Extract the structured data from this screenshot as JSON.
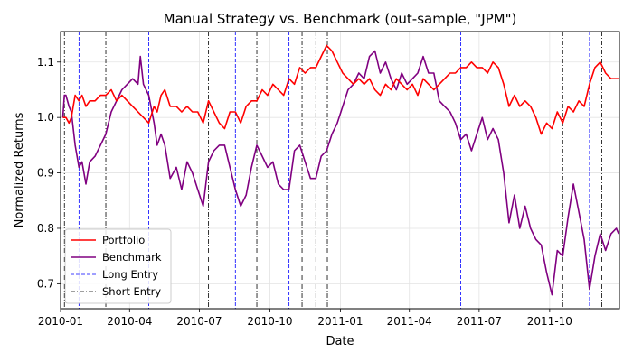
{
  "chart_data": {
    "type": "line",
    "title": "Manual Strategy vs. Benchmark (out-sample, \"JPM\")",
    "xlabel": "Date",
    "ylabel": "Normalized Returns",
    "xlim": [
      "2010-01-01",
      "2011-12-31"
    ],
    "ylim": [
      0.655,
      1.155
    ],
    "grid": true,
    "legend_position": "lower-left",
    "x_ticks": [
      {
        "date": "2010-01-01",
        "label": "2010-01"
      },
      {
        "date": "2010-04-01",
        "label": "2010-04"
      },
      {
        "date": "2010-07-01",
        "label": "2010-07"
      },
      {
        "date": "2010-10-01",
        "label": "2010-10"
      },
      {
        "date": "2011-01-01",
        "label": "2011-01"
      },
      {
        "date": "2011-04-01",
        "label": "2011-04"
      },
      {
        "date": "2011-07-01",
        "label": "2011-07"
      },
      {
        "date": "2011-10-01",
        "label": "2011-10"
      }
    ],
    "y_ticks": [
      {
        "value": 0.7,
        "label": "0.7"
      },
      {
        "value": 0.8,
        "label": "0.8"
      },
      {
        "value": 0.9,
        "label": "0.9"
      },
      {
        "value": 1.0,
        "label": "1.0"
      },
      {
        "value": 1.1,
        "label": "1.1"
      }
    ],
    "series": [
      {
        "name": "Portfolio",
        "color": "#ff0000",
        "points": [
          [
            "2010-01-04",
            1.0
          ],
          [
            "2010-01-08",
            1.0
          ],
          [
            "2010-01-12",
            0.99
          ],
          [
            "2010-01-15",
            1.0
          ],
          [
            "2010-01-20",
            1.04
          ],
          [
            "2010-01-25",
            1.03
          ],
          [
            "2010-01-29",
            1.04
          ],
          [
            "2010-02-03",
            1.02
          ],
          [
            "2010-02-08",
            1.03
          ],
          [
            "2010-02-15",
            1.03
          ],
          [
            "2010-02-22",
            1.04
          ],
          [
            "2010-03-01",
            1.04
          ],
          [
            "2010-03-08",
            1.05
          ],
          [
            "2010-03-15",
            1.03
          ],
          [
            "2010-03-22",
            1.04
          ],
          [
            "2010-03-29",
            1.03
          ],
          [
            "2010-04-05",
            1.02
          ],
          [
            "2010-04-12",
            1.01
          ],
          [
            "2010-04-19",
            1.0
          ],
          [
            "2010-04-26",
            0.99
          ],
          [
            "2010-05-03",
            1.02
          ],
          [
            "2010-05-07",
            1.01
          ],
          [
            "2010-05-12",
            1.04
          ],
          [
            "2010-05-17",
            1.05
          ],
          [
            "2010-05-24",
            1.02
          ],
          [
            "2010-06-01",
            1.02
          ],
          [
            "2010-06-08",
            1.01
          ],
          [
            "2010-06-15",
            1.02
          ],
          [
            "2010-06-22",
            1.01
          ],
          [
            "2010-06-29",
            1.01
          ],
          [
            "2010-07-06",
            0.99
          ],
          [
            "2010-07-13",
            1.03
          ],
          [
            "2010-07-20",
            1.01
          ],
          [
            "2010-07-27",
            0.99
          ],
          [
            "2010-08-03",
            0.98
          ],
          [
            "2010-08-10",
            1.01
          ],
          [
            "2010-08-17",
            1.01
          ],
          [
            "2010-08-24",
            0.99
          ],
          [
            "2010-08-31",
            1.02
          ],
          [
            "2010-09-07",
            1.03
          ],
          [
            "2010-09-14",
            1.03
          ],
          [
            "2010-09-21",
            1.05
          ],
          [
            "2010-09-28",
            1.04
          ],
          [
            "2010-10-05",
            1.06
          ],
          [
            "2010-10-12",
            1.05
          ],
          [
            "2010-10-19",
            1.04
          ],
          [
            "2010-10-26",
            1.07
          ],
          [
            "2010-11-02",
            1.06
          ],
          [
            "2010-11-09",
            1.09
          ],
          [
            "2010-11-16",
            1.08
          ],
          [
            "2010-11-23",
            1.09
          ],
          [
            "2010-11-30",
            1.09
          ],
          [
            "2010-12-07",
            1.11
          ],
          [
            "2010-12-14",
            1.13
          ],
          [
            "2010-12-21",
            1.12
          ],
          [
            "2010-12-28",
            1.1
          ],
          [
            "2011-01-04",
            1.08
          ],
          [
            "2011-01-11",
            1.07
          ],
          [
            "2011-01-18",
            1.06
          ],
          [
            "2011-01-25",
            1.07
          ],
          [
            "2011-02-01",
            1.06
          ],
          [
            "2011-02-08",
            1.07
          ],
          [
            "2011-02-15",
            1.05
          ],
          [
            "2011-02-22",
            1.04
          ],
          [
            "2011-03-01",
            1.06
          ],
          [
            "2011-03-08",
            1.05
          ],
          [
            "2011-03-15",
            1.07
          ],
          [
            "2011-03-22",
            1.06
          ],
          [
            "2011-03-29",
            1.05
          ],
          [
            "2011-04-05",
            1.06
          ],
          [
            "2011-04-12",
            1.04
          ],
          [
            "2011-04-19",
            1.07
          ],
          [
            "2011-04-26",
            1.06
          ],
          [
            "2011-05-03",
            1.05
          ],
          [
            "2011-05-10",
            1.06
          ],
          [
            "2011-05-17",
            1.07
          ],
          [
            "2011-05-24",
            1.08
          ],
          [
            "2011-05-31",
            1.08
          ],
          [
            "2011-06-07",
            1.09
          ],
          [
            "2011-06-14",
            1.09
          ],
          [
            "2011-06-21",
            1.1
          ],
          [
            "2011-06-28",
            1.09
          ],
          [
            "2011-07-05",
            1.09
          ],
          [
            "2011-07-12",
            1.08
          ],
          [
            "2011-07-19",
            1.1
          ],
          [
            "2011-07-26",
            1.09
          ],
          [
            "2011-08-02",
            1.06
          ],
          [
            "2011-08-09",
            1.02
          ],
          [
            "2011-08-16",
            1.04
          ],
          [
            "2011-08-23",
            1.02
          ],
          [
            "2011-08-30",
            1.03
          ],
          [
            "2011-09-06",
            1.02
          ],
          [
            "2011-09-13",
            1.0
          ],
          [
            "2011-09-20",
            0.97
          ],
          [
            "2011-09-27",
            0.99
          ],
          [
            "2011-10-04",
            0.98
          ],
          [
            "2011-10-11",
            1.01
          ],
          [
            "2011-10-18",
            0.99
          ],
          [
            "2011-10-25",
            1.02
          ],
          [
            "2011-11-01",
            1.01
          ],
          [
            "2011-11-08",
            1.03
          ],
          [
            "2011-11-15",
            1.02
          ],
          [
            "2011-11-22",
            1.06
          ],
          [
            "2011-11-29",
            1.09
          ],
          [
            "2011-12-06",
            1.1
          ],
          [
            "2011-12-13",
            1.08
          ],
          [
            "2011-12-20",
            1.07
          ],
          [
            "2011-12-27",
            1.07
          ],
          [
            "2011-12-30",
            1.07
          ]
        ]
      },
      {
        "name": "Benchmark",
        "color": "#800080",
        "points": [
          [
            "2010-01-04",
            1.0
          ],
          [
            "2010-01-06",
            1.04
          ],
          [
            "2010-01-08",
            1.04
          ],
          [
            "2010-01-12",
            1.02
          ],
          [
            "2010-01-15",
            1.01
          ],
          [
            "2010-01-20",
            0.95
          ],
          [
            "2010-01-25",
            0.91
          ],
          [
            "2010-01-29",
            0.92
          ],
          [
            "2010-02-03",
            0.88
          ],
          [
            "2010-02-08",
            0.92
          ],
          [
            "2010-02-15",
            0.93
          ],
          [
            "2010-02-22",
            0.95
          ],
          [
            "2010-03-01",
            0.97
          ],
          [
            "2010-03-08",
            1.01
          ],
          [
            "2010-03-15",
            1.03
          ],
          [
            "2010-03-22",
            1.05
          ],
          [
            "2010-03-29",
            1.06
          ],
          [
            "2010-04-05",
            1.07
          ],
          [
            "2010-04-12",
            1.06
          ],
          [
            "2010-04-15",
            1.11
          ],
          [
            "2010-04-19",
            1.06
          ],
          [
            "2010-04-26",
            1.04
          ],
          [
            "2010-05-03",
            0.99
          ],
          [
            "2010-05-07",
            0.95
          ],
          [
            "2010-05-12",
            0.97
          ],
          [
            "2010-05-17",
            0.95
          ],
          [
            "2010-05-24",
            0.89
          ],
          [
            "2010-06-01",
            0.91
          ],
          [
            "2010-06-08",
            0.87
          ],
          [
            "2010-06-15",
            0.92
          ],
          [
            "2010-06-22",
            0.9
          ],
          [
            "2010-06-29",
            0.87
          ],
          [
            "2010-07-06",
            0.84
          ],
          [
            "2010-07-13",
            0.92
          ],
          [
            "2010-07-20",
            0.94
          ],
          [
            "2010-07-27",
            0.95
          ],
          [
            "2010-08-03",
            0.95
          ],
          [
            "2010-08-10",
            0.91
          ],
          [
            "2010-08-17",
            0.87
          ],
          [
            "2010-08-24",
            0.84
          ],
          [
            "2010-08-31",
            0.86
          ],
          [
            "2010-09-07",
            0.91
          ],
          [
            "2010-09-14",
            0.95
          ],
          [
            "2010-09-21",
            0.93
          ],
          [
            "2010-09-28",
            0.91
          ],
          [
            "2010-10-05",
            0.92
          ],
          [
            "2010-10-12",
            0.88
          ],
          [
            "2010-10-19",
            0.87
          ],
          [
            "2010-10-26",
            0.87
          ],
          [
            "2010-11-02",
            0.94
          ],
          [
            "2010-11-09",
            0.95
          ],
          [
            "2010-11-16",
            0.92
          ],
          [
            "2010-11-23",
            0.89
          ],
          [
            "2010-11-30",
            0.89
          ],
          [
            "2010-12-07",
            0.93
          ],
          [
            "2010-12-14",
            0.94
          ],
          [
            "2010-12-21",
            0.97
          ],
          [
            "2010-12-28",
            0.99
          ],
          [
            "2011-01-04",
            1.02
          ],
          [
            "2011-01-11",
            1.05
          ],
          [
            "2011-01-18",
            1.06
          ],
          [
            "2011-01-25",
            1.08
          ],
          [
            "2011-02-01",
            1.07
          ],
          [
            "2011-02-08",
            1.11
          ],
          [
            "2011-02-15",
            1.12
          ],
          [
            "2011-02-22",
            1.08
          ],
          [
            "2011-03-01",
            1.1
          ],
          [
            "2011-03-08",
            1.07
          ],
          [
            "2011-03-15",
            1.05
          ],
          [
            "2011-03-22",
            1.08
          ],
          [
            "2011-03-29",
            1.06
          ],
          [
            "2011-04-05",
            1.07
          ],
          [
            "2011-04-12",
            1.08
          ],
          [
            "2011-04-19",
            1.11
          ],
          [
            "2011-04-26",
            1.08
          ],
          [
            "2011-05-03",
            1.08
          ],
          [
            "2011-05-10",
            1.03
          ],
          [
            "2011-05-17",
            1.02
          ],
          [
            "2011-05-24",
            1.01
          ],
          [
            "2011-05-31",
            0.99
          ],
          [
            "2011-06-07",
            0.96
          ],
          [
            "2011-06-14",
            0.97
          ],
          [
            "2011-06-21",
            0.94
          ],
          [
            "2011-06-28",
            0.97
          ],
          [
            "2011-07-05",
            1.0
          ],
          [
            "2011-07-12",
            0.96
          ],
          [
            "2011-07-19",
            0.98
          ],
          [
            "2011-07-26",
            0.96
          ],
          [
            "2011-08-02",
            0.9
          ],
          [
            "2011-08-09",
            0.81
          ],
          [
            "2011-08-16",
            0.86
          ],
          [
            "2011-08-23",
            0.8
          ],
          [
            "2011-08-30",
            0.84
          ],
          [
            "2011-09-06",
            0.8
          ],
          [
            "2011-09-13",
            0.78
          ],
          [
            "2011-09-20",
            0.77
          ],
          [
            "2011-09-27",
            0.72
          ],
          [
            "2011-10-04",
            0.68
          ],
          [
            "2011-10-11",
            0.76
          ],
          [
            "2011-10-18",
            0.75
          ],
          [
            "2011-10-25",
            0.82
          ],
          [
            "2011-11-01",
            0.88
          ],
          [
            "2011-11-08",
            0.83
          ],
          [
            "2011-11-15",
            0.78
          ],
          [
            "2011-11-22",
            0.69
          ],
          [
            "2011-11-29",
            0.75
          ],
          [
            "2011-12-06",
            0.79
          ],
          [
            "2011-12-13",
            0.76
          ],
          [
            "2011-12-20",
            0.79
          ],
          [
            "2011-12-27",
            0.8
          ],
          [
            "2011-12-30",
            0.79
          ]
        ]
      }
    ],
    "long_entries": [
      "2010-01-25",
      "2010-04-26",
      "2010-08-17",
      "2010-10-26",
      "2011-06-07",
      "2011-11-22"
    ],
    "short_entries": [
      "2010-01-06",
      "2010-03-01",
      "2010-07-13",
      "2010-09-14",
      "2010-11-12",
      "2010-11-30",
      "2010-12-15",
      "2011-10-18",
      "2011-12-08"
    ],
    "legend": [
      {
        "label": "Portfolio",
        "style": "line",
        "color": "#ff0000"
      },
      {
        "label": "Benchmark",
        "style": "line",
        "color": "#800080"
      },
      {
        "label": "Long Entry",
        "style": "dashed",
        "color": "#0000ff"
      },
      {
        "label": "Short Entry",
        "style": "dashdot",
        "color": "#000000"
      }
    ]
  }
}
